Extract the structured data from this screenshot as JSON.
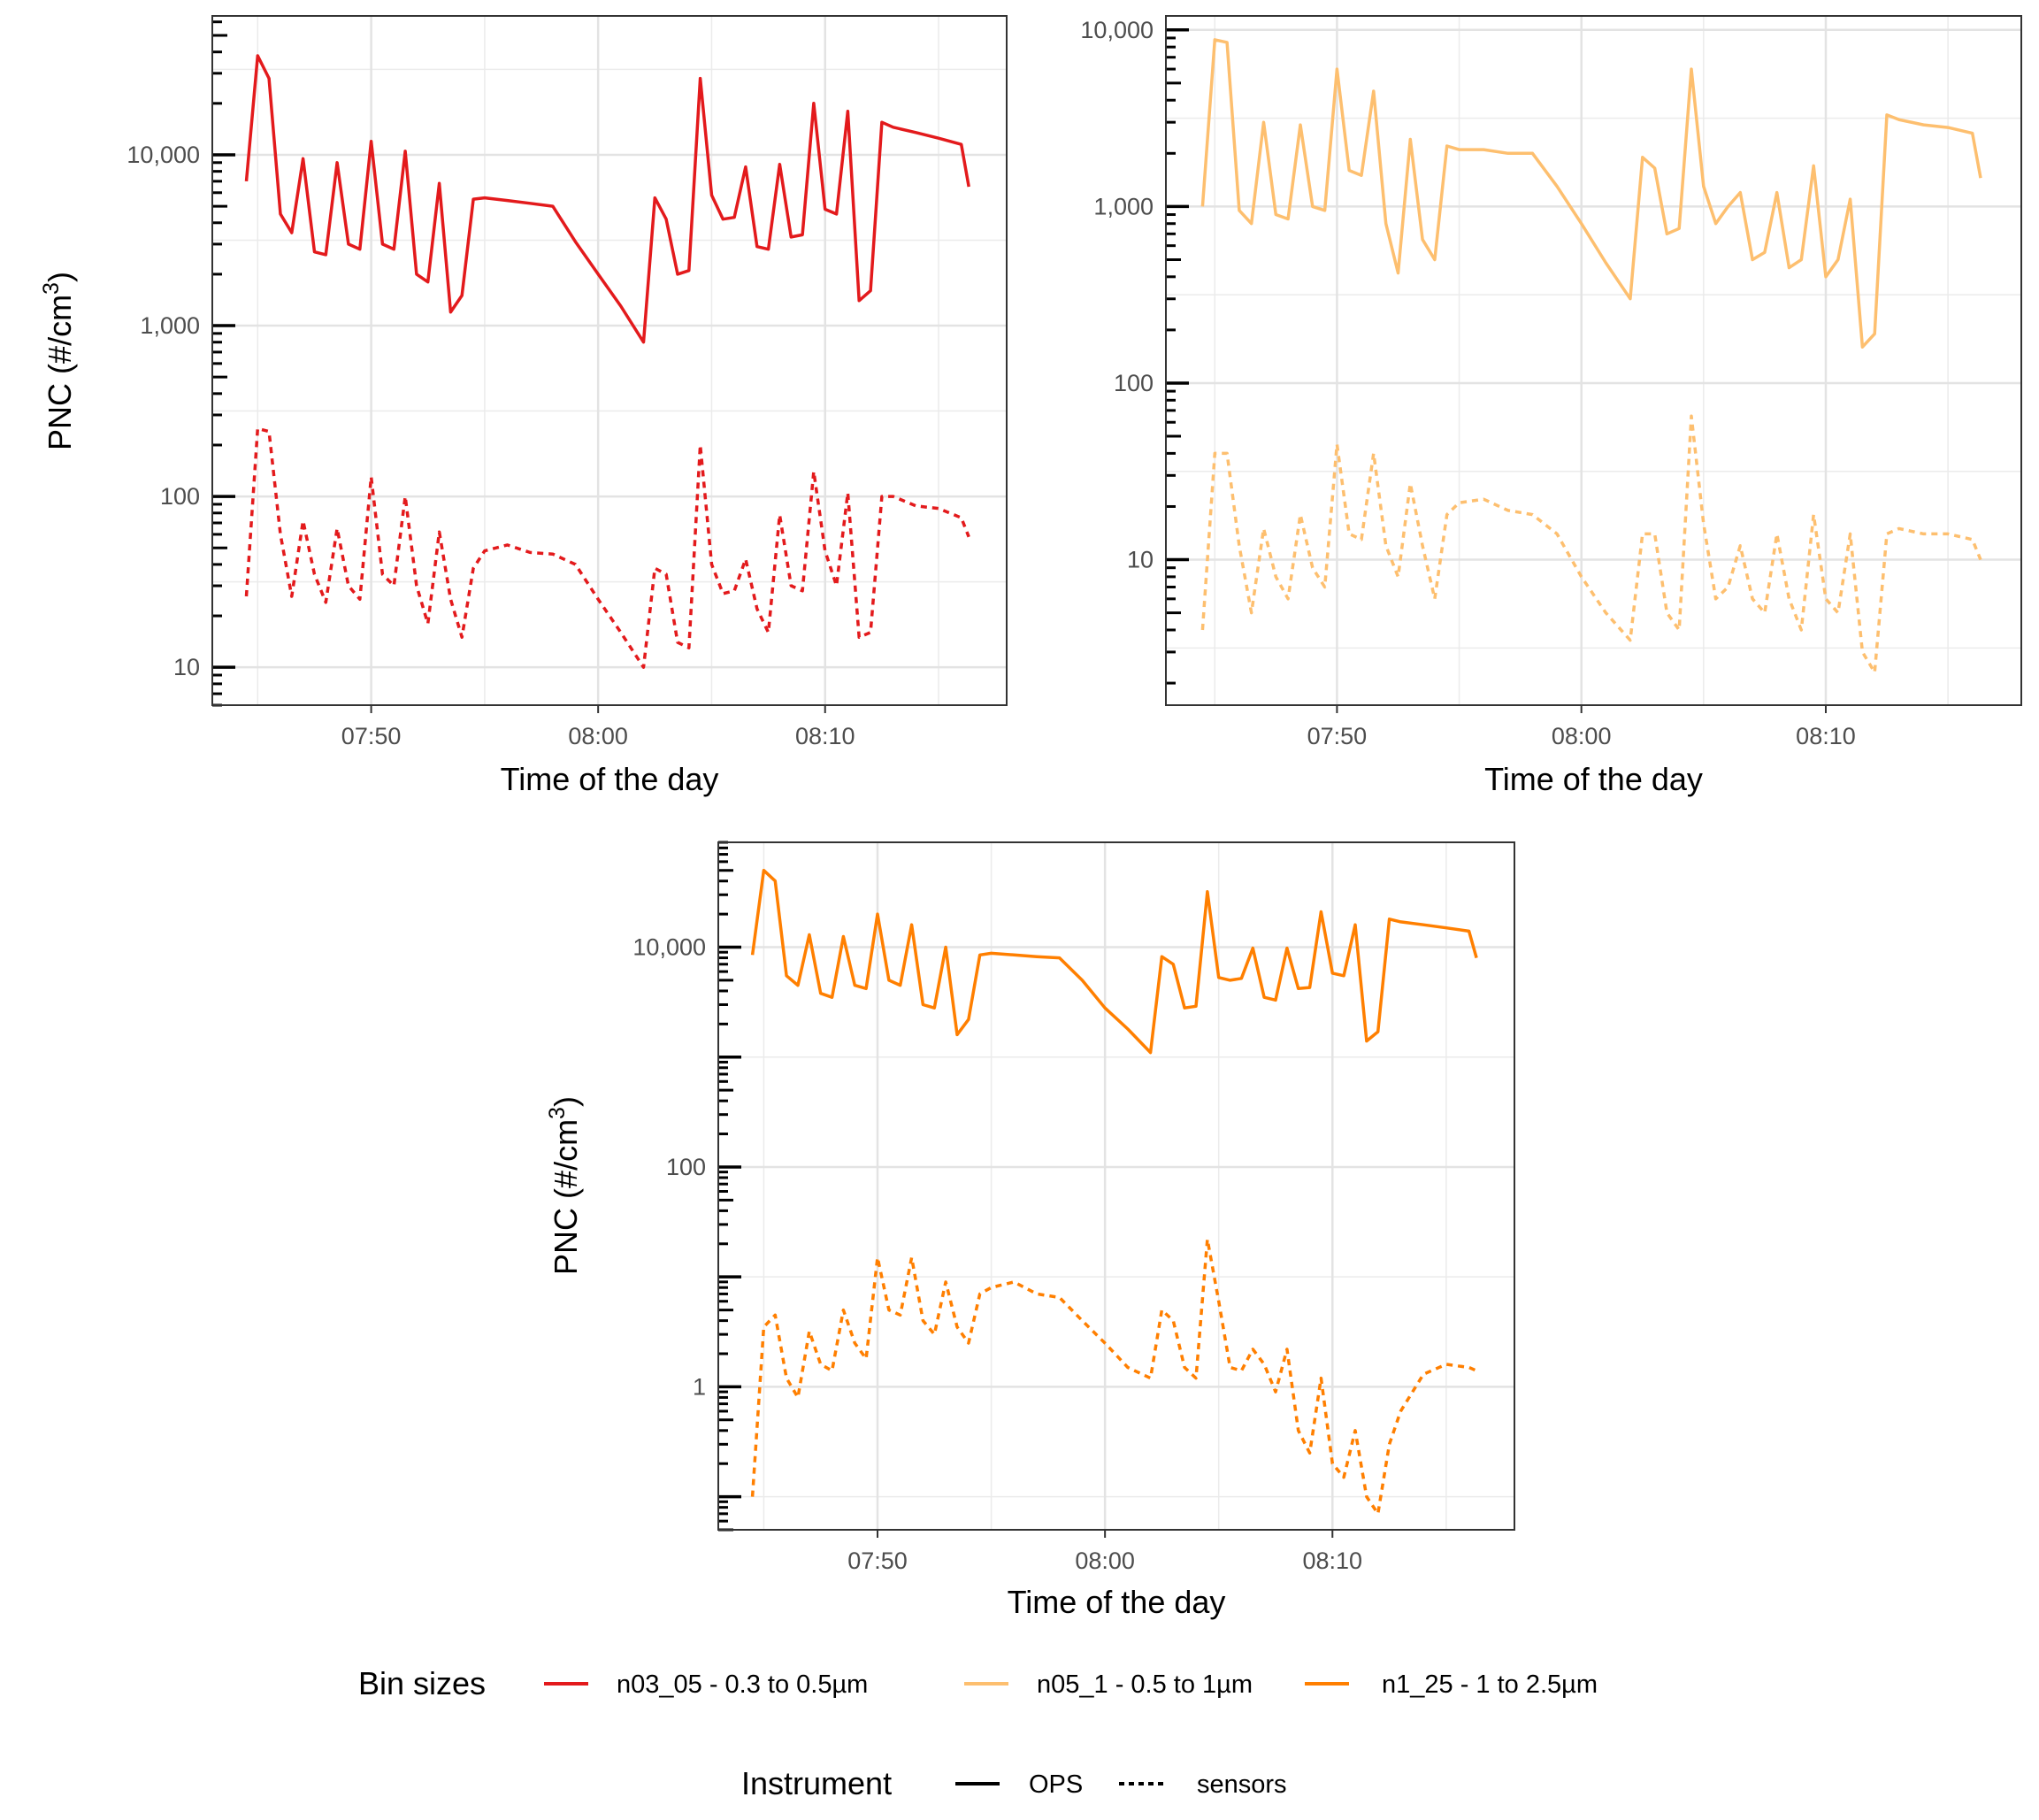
{
  "chart_data": [
    {
      "type": "line",
      "xlabel": "Time of the day",
      "ylabel": "PNC (#/cm3)",
      "ylabel_parts": [
        "PNC (#/cm",
        "3",
        ")"
      ],
      "yscale": "log10",
      "ylim": [
        6,
        65000
      ],
      "xlim": [
        "07:43",
        "08:18"
      ],
      "xticks": [
        "07:50",
        "08:00",
        "08:10"
      ],
      "yticks": [
        {
          "value": 10,
          "label": "10"
        },
        {
          "value": 100,
          "label": "100"
        },
        {
          "value": 1000,
          "label": "1,000"
        },
        {
          "value": 10000,
          "label": "10,000"
        }
      ],
      "grid": true,
      "series": [
        {
          "bin": "n03_05 - 0.3 to 0.5µm",
          "instrument": "OPS",
          "color": "#e31a1c",
          "x": [
            "07:44:30",
            "07:45:00",
            "07:45:30",
            "07:46:00",
            "07:46:30",
            "07:47:00",
            "07:47:30",
            "07:48:00",
            "07:48:30",
            "07:49:00",
            "07:49:30",
            "07:50:00",
            "07:50:30",
            "07:51:00",
            "07:51:30",
            "07:52:00",
            "07:52:30",
            "07:53:00",
            "07:53:30",
            "07:54:00",
            "07:54:30",
            "07:55:00",
            "07:56:00",
            "07:57:00",
            "07:58:00",
            "07:59:00",
            "08:00:00",
            "08:01:00",
            "08:02:00",
            "08:02:30",
            "08:03:00",
            "08:03:30",
            "08:04:00",
            "08:04:30",
            "08:05:00",
            "08:05:30",
            "08:06:00",
            "08:06:30",
            "08:07:00",
            "08:07:30",
            "08:08:00",
            "08:08:30",
            "08:09:00",
            "08:09:30",
            "08:10:00",
            "08:10:30",
            "08:11:00",
            "08:11:30",
            "08:12:00",
            "08:12:30",
            "08:13:00",
            "08:14:00",
            "08:15:00",
            "08:16:00",
            "08:16:20"
          ],
          "y": [
            7000,
            38000,
            28000,
            4500,
            3500,
            9500,
            2700,
            2600,
            9000,
            3000,
            2800,
            12000,
            3000,
            2800,
            10500,
            2000,
            1800,
            6800,
            1200,
            1500,
            5500,
            5600,
            5400,
            5200,
            5000,
            3100,
            2000,
            1300,
            800,
            5600,
            4200,
            2000,
            2100,
            28000,
            5800,
            4200,
            4300,
            8500,
            2900,
            2800,
            8800,
            3300,
            3400,
            20000,
            4800,
            4500,
            18000,
            1400,
            1600,
            15500,
            14500,
            13500,
            12500,
            11500,
            6500
          ]
        },
        {
          "bin": "n03_05 - 0.3 to 0.5µm",
          "instrument": "sensors",
          "color": "#e31a1c",
          "x": [
            "07:44:30",
            "07:45:00",
            "07:45:30",
            "07:46:00",
            "07:46:30",
            "07:47:00",
            "07:47:30",
            "07:48:00",
            "07:48:30",
            "07:49:00",
            "07:49:30",
            "07:50:00",
            "07:50:30",
            "07:51:00",
            "07:51:30",
            "07:52:00",
            "07:52:30",
            "07:53:00",
            "07:53:30",
            "07:54:00",
            "07:54:30",
            "07:55:00",
            "07:56:00",
            "07:57:00",
            "07:58:00",
            "07:59:00",
            "08:00:00",
            "08:01:00",
            "08:02:00",
            "08:02:30",
            "08:03:00",
            "08:03:30",
            "08:04:00",
            "08:04:30",
            "08:05:00",
            "08:05:30",
            "08:06:00",
            "08:06:30",
            "08:07:00",
            "08:07:30",
            "08:08:00",
            "08:08:30",
            "08:09:00",
            "08:09:30",
            "08:10:00",
            "08:10:30",
            "08:11:00",
            "08:11:30",
            "08:12:00",
            "08:12:30",
            "08:13:00",
            "08:14:00",
            "08:15:00",
            "08:16:00",
            "08:16:20"
          ],
          "y": [
            26,
            250,
            240,
            60,
            26,
            72,
            35,
            24,
            65,
            30,
            25,
            130,
            35,
            30,
            100,
            30,
            18,
            62,
            25,
            15,
            38,
            48,
            52,
            47,
            46,
            40,
            25,
            16,
            10,
            38,
            35,
            14,
            13,
            200,
            40,
            27,
            28,
            43,
            22,
            16,
            78,
            30,
            28,
            140,
            48,
            30,
            105,
            15,
            16,
            100,
            100,
            88,
            85,
            75,
            58
          ]
        }
      ]
    },
    {
      "type": "line",
      "xlabel": "Time of the day",
      "ylabel": "",
      "yscale": "log10",
      "ylim": [
        1.5,
        12000
      ],
      "xlim": [
        "07:43",
        "08:18"
      ],
      "xticks": [
        "07:50",
        "08:00",
        "08:10"
      ],
      "yticks": [
        {
          "value": 10,
          "label": "10"
        },
        {
          "value": 100,
          "label": "100"
        },
        {
          "value": 1000,
          "label": "1,000"
        },
        {
          "value": 10000,
          "label": "10,000"
        }
      ],
      "grid": true,
      "series": [
        {
          "bin": "n05_1 - 0.5 to 1µm",
          "instrument": "OPS",
          "color": "#fdbf6f",
          "x": [
            "07:44:30",
            "07:45:00",
            "07:45:30",
            "07:46:00",
            "07:46:30",
            "07:47:00",
            "07:47:30",
            "07:48:00",
            "07:48:30",
            "07:49:00",
            "07:49:30",
            "07:50:00",
            "07:50:30",
            "07:51:00",
            "07:51:30",
            "07:52:00",
            "07:52:30",
            "07:53:00",
            "07:53:30",
            "07:54:00",
            "07:54:30",
            "07:55:00",
            "07:56:00",
            "07:57:00",
            "07:58:00",
            "07:59:00",
            "08:00:00",
            "08:01:00",
            "08:02:00",
            "08:02:30",
            "08:03:00",
            "08:03:30",
            "08:04:00",
            "08:04:30",
            "08:05:00",
            "08:05:30",
            "08:06:00",
            "08:06:30",
            "08:07:00",
            "08:07:30",
            "08:08:00",
            "08:08:30",
            "08:09:00",
            "08:09:30",
            "08:10:00",
            "08:10:30",
            "08:11:00",
            "08:11:30",
            "08:12:00",
            "08:12:30",
            "08:13:00",
            "08:14:00",
            "08:15:00",
            "08:16:00",
            "08:16:20"
          ],
          "y": [
            1000,
            8800,
            8500,
            950,
            800,
            3000,
            900,
            850,
            2900,
            1000,
            950,
            6000,
            1600,
            1500,
            4500,
            800,
            420,
            2400,
            650,
            500,
            2200,
            2100,
            2100,
            2000,
            2000,
            1300,
            800,
            480,
            300,
            1900,
            1650,
            700,
            750,
            6000,
            1300,
            800,
            1000,
            1200,
            500,
            550,
            1200,
            450,
            500,
            1700,
            400,
            500,
            1100,
            160,
            190,
            3300,
            3100,
            2900,
            2800,
            2600,
            1450
          ]
        },
        {
          "bin": "n05_1 - 0.5 to 1µm",
          "instrument": "sensors",
          "color": "#fdbf6f",
          "x": [
            "07:44:30",
            "07:45:00",
            "07:45:30",
            "07:46:00",
            "07:46:30",
            "07:47:00",
            "07:47:30",
            "07:48:00",
            "07:48:30",
            "07:49:00",
            "07:49:30",
            "07:50:00",
            "07:50:30",
            "07:51:00",
            "07:51:30",
            "07:52:00",
            "07:52:30",
            "07:53:00",
            "07:53:30",
            "07:54:00",
            "07:54:30",
            "07:55:00",
            "07:56:00",
            "07:57:00",
            "07:58:00",
            "07:59:00",
            "08:00:00",
            "08:01:00",
            "08:02:00",
            "08:02:30",
            "08:03:00",
            "08:03:30",
            "08:04:00",
            "08:04:30",
            "08:05:00",
            "08:05:30",
            "08:06:00",
            "08:06:30",
            "08:07:00",
            "08:07:30",
            "08:08:00",
            "08:08:30",
            "08:09:00",
            "08:09:30",
            "08:10:00",
            "08:10:30",
            "08:11:00",
            "08:11:30",
            "08:12:00",
            "08:12:30",
            "08:13:00",
            "08:14:00",
            "08:15:00",
            "08:16:00",
            "08:16:20"
          ],
          "y": [
            4,
            40,
            40,
            12,
            5,
            15,
            8,
            6,
            18,
            9,
            7,
            45,
            14,
            13,
            40,
            12,
            8,
            27,
            12,
            6,
            18,
            21,
            22,
            19,
            18,
            14,
            8,
            5,
            3.5,
            14,
            14,
            5,
            4,
            65,
            16,
            6,
            7,
            12,
            6,
            5,
            14,
            6,
            4,
            18,
            6,
            5,
            14,
            3,
            2.3,
            14,
            15,
            14,
            14,
            13,
            10
          ]
        }
      ]
    },
    {
      "type": "line",
      "xlabel": "Time of the day",
      "ylabel": "PNC (#/cm3)",
      "ylabel_parts": [
        "PNC (#/cm",
        "3",
        ")"
      ],
      "yscale": "log10",
      "ylim": [
        0.05,
        90000
      ],
      "xlim": [
        "07:43",
        "08:18"
      ],
      "xticks": [
        "07:50",
        "08:00",
        "08:10"
      ],
      "yticks": [
        {
          "value": 1,
          "label": "1"
        },
        {
          "value": 100,
          "label": "100"
        },
        {
          "value": 10000,
          "label": "10,000"
        }
      ],
      "grid": true,
      "series": [
        {
          "bin": "n1_25 - 1 to 2.5µm",
          "instrument": "OPS",
          "color": "#ff7f00",
          "x": [
            "07:44:30",
            "07:45:00",
            "07:45:30",
            "07:46:00",
            "07:46:30",
            "07:47:00",
            "07:47:30",
            "07:48:00",
            "07:48:30",
            "07:49:00",
            "07:49:30",
            "07:50:00",
            "07:50:30",
            "07:51:00",
            "07:51:30",
            "07:52:00",
            "07:52:30",
            "07:53:00",
            "07:53:30",
            "07:54:00",
            "07:54:30",
            "07:55:00",
            "07:56:00",
            "07:57:00",
            "07:58:00",
            "07:59:00",
            "08:00:00",
            "08:01:00",
            "08:02:00",
            "08:02:30",
            "08:03:00",
            "08:03:30",
            "08:04:00",
            "08:04:30",
            "08:05:00",
            "08:05:30",
            "08:06:00",
            "08:06:30",
            "08:07:00",
            "08:07:30",
            "08:08:00",
            "08:08:30",
            "08:09:00",
            "08:09:30",
            "08:10:00",
            "08:10:30",
            "08:11:00",
            "08:11:30",
            "08:12:00",
            "08:12:30",
            "08:13:00",
            "08:14:00",
            "08:15:00",
            "08:16:00",
            "08:16:20"
          ],
          "y": [
            8500,
            50000,
            40000,
            5500,
            4500,
            13000,
            3800,
            3500,
            12500,
            4500,
            4200,
            20000,
            5000,
            4500,
            16000,
            3000,
            2800,
            10000,
            1600,
            2200,
            8500,
            8800,
            8500,
            8200,
            8000,
            5000,
            2800,
            1800,
            1100,
            8200,
            7000,
            2800,
            2900,
            32000,
            5300,
            5000,
            5200,
            9800,
            3500,
            3300,
            9800,
            4200,
            4300,
            21000,
            5800,
            5500,
            16000,
            1400,
            1700,
            18000,
            17000,
            16000,
            15000,
            14000,
            8000
          ]
        },
        {
          "bin": "n1_25 - 1 to 2.5µm",
          "instrument": "sensors",
          "color": "#ff7f00",
          "x": [
            "07:44:30",
            "07:45:00",
            "07:45:30",
            "07:46:00",
            "07:46:30",
            "07:47:00",
            "07:47:30",
            "07:48:00",
            "07:48:30",
            "07:49:00",
            "07:49:30",
            "07:50:00",
            "07:50:30",
            "07:51:00",
            "07:51:30",
            "07:52:00",
            "07:52:30",
            "07:53:00",
            "07:53:30",
            "07:54:00",
            "07:54:30",
            "07:55:00",
            "07:56:00",
            "07:57:00",
            "07:58:00",
            "07:59:00",
            "08:00:00",
            "08:01:00",
            "08:02:00",
            "08:02:30",
            "08:03:00",
            "08:03:30",
            "08:04:00",
            "08:04:30",
            "08:05:00",
            "08:05:30",
            "08:06:00",
            "08:06:30",
            "08:07:00",
            "08:07:30",
            "08:08:00",
            "08:08:30",
            "08:09:00",
            "08:09:30",
            "08:10:00",
            "08:10:30",
            "08:11:00",
            "08:11:30",
            "08:12:00",
            "08:12:30",
            "08:13:00",
            "08:14:00",
            "08:15:00",
            "08:16:00",
            "08:16:20"
          ],
          "y": [
            0.1,
            3.5,
            4.5,
            1.2,
            0.8,
            3.2,
            1.6,
            1.4,
            5,
            2.5,
            1.8,
            15,
            5,
            4.5,
            15,
            4,
            3,
            9,
            3.5,
            2.5,
            7,
            8,
            9,
            7,
            6.5,
            4,
            2.5,
            1.5,
            1.2,
            5,
            4,
            1.5,
            1.2,
            22,
            6,
            1.5,
            1.4,
            2.2,
            1.6,
            0.9,
            2.2,
            0.4,
            0.25,
            1.2,
            0.2,
            0.15,
            0.4,
            0.1,
            0.07,
            0.3,
            0.6,
            1.3,
            1.6,
            1.5,
            1.4
          ]
        }
      ]
    }
  ],
  "legend": {
    "bins": {
      "title": "Bin sizes",
      "entries": [
        {
          "label": "n03_05 - 0.3 to 0.5µm",
          "color": "#e31a1c"
        },
        {
          "label": "n05_1 - 0.5 to 1µm",
          "color": "#fdbf6f"
        },
        {
          "label": "n1_25 - 1 to 2.5µm",
          "color": "#ff7f00"
        }
      ]
    },
    "instrument": {
      "title": "Instrument",
      "entries": [
        {
          "label": "OPS",
          "linetype": "solid"
        },
        {
          "label": "sensors",
          "linetype": "dashed"
        }
      ]
    }
  }
}
